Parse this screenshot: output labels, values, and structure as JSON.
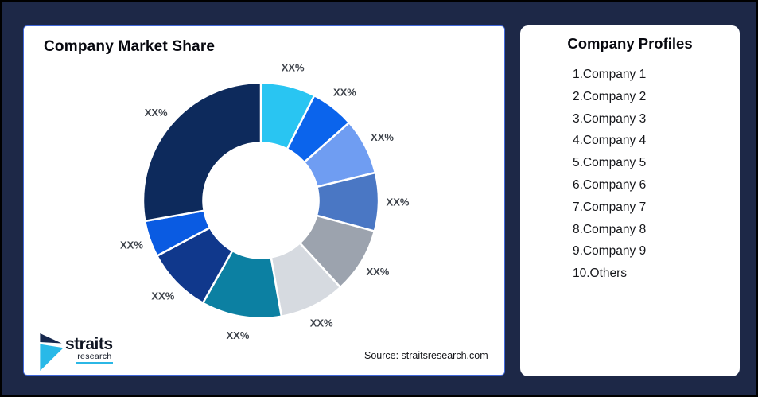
{
  "window": {
    "background": "#1D2847",
    "border": "#000000"
  },
  "chart_panel": {
    "title": "Company Market Share",
    "source_note": "Source: straitsresearch.com",
    "border_color": "#4168D9"
  },
  "logo": {
    "brand": "straits",
    "brand_sub": "research",
    "mark_dark": "#16284E",
    "mark_cyan": "#29B9E8",
    "underline": "#2BB7E5"
  },
  "profiles_panel": {
    "title": "Company Profiles",
    "items": [
      "1.Company 1",
      "2.Company 2",
      "3.Company 3",
      "4.Company 4",
      "5.Company 5",
      "6.Company 6",
      "7.Company 7",
      "8.Company 8",
      "9.Company 9",
      "10.Others"
    ]
  },
  "chart_data": {
    "type": "pie",
    "variant": "donut",
    "title": "Company Market Share",
    "label_placeholder": "XX%",
    "start_angle_deg": 0,
    "direction": "clockwise",
    "inner_radius_ratio": 0.49,
    "legend_position": "none",
    "label_color": "#3E434B",
    "segments": [
      {
        "name": "Company 1",
        "label": "XX%",
        "share_pct_est": 7.5,
        "color": "#29C5F2"
      },
      {
        "name": "Company 2",
        "label": "XX%",
        "share_pct_est": 6.0,
        "color": "#0B64EC"
      },
      {
        "name": "Company 3",
        "label": "XX%",
        "share_pct_est": 7.7,
        "color": "#6F9DF2"
      },
      {
        "name": "Company 4",
        "label": "XX%",
        "share_pct_est": 8.0,
        "color": "#4A77C4"
      },
      {
        "name": "Company 5",
        "label": "XX%",
        "share_pct_est": 9.0,
        "color": "#9CA3AE"
      },
      {
        "name": "Company 6",
        "label": "XX%",
        "share_pct_est": 9.0,
        "color": "#D6DAE0"
      },
      {
        "name": "Company 7",
        "label": "XX%",
        "share_pct_est": 11.0,
        "color": "#0C80A2"
      },
      {
        "name": "Company 8",
        "label": "XX%",
        "share_pct_est": 9.0,
        "color": "#10388C"
      },
      {
        "name": "Company 9",
        "label": "XX%",
        "share_pct_est": 5.0,
        "color": "#0A5BE2"
      },
      {
        "name": "Others",
        "label": "XX%",
        "share_pct_est": 27.8,
        "color": "#0D2A5C"
      }
    ]
  }
}
